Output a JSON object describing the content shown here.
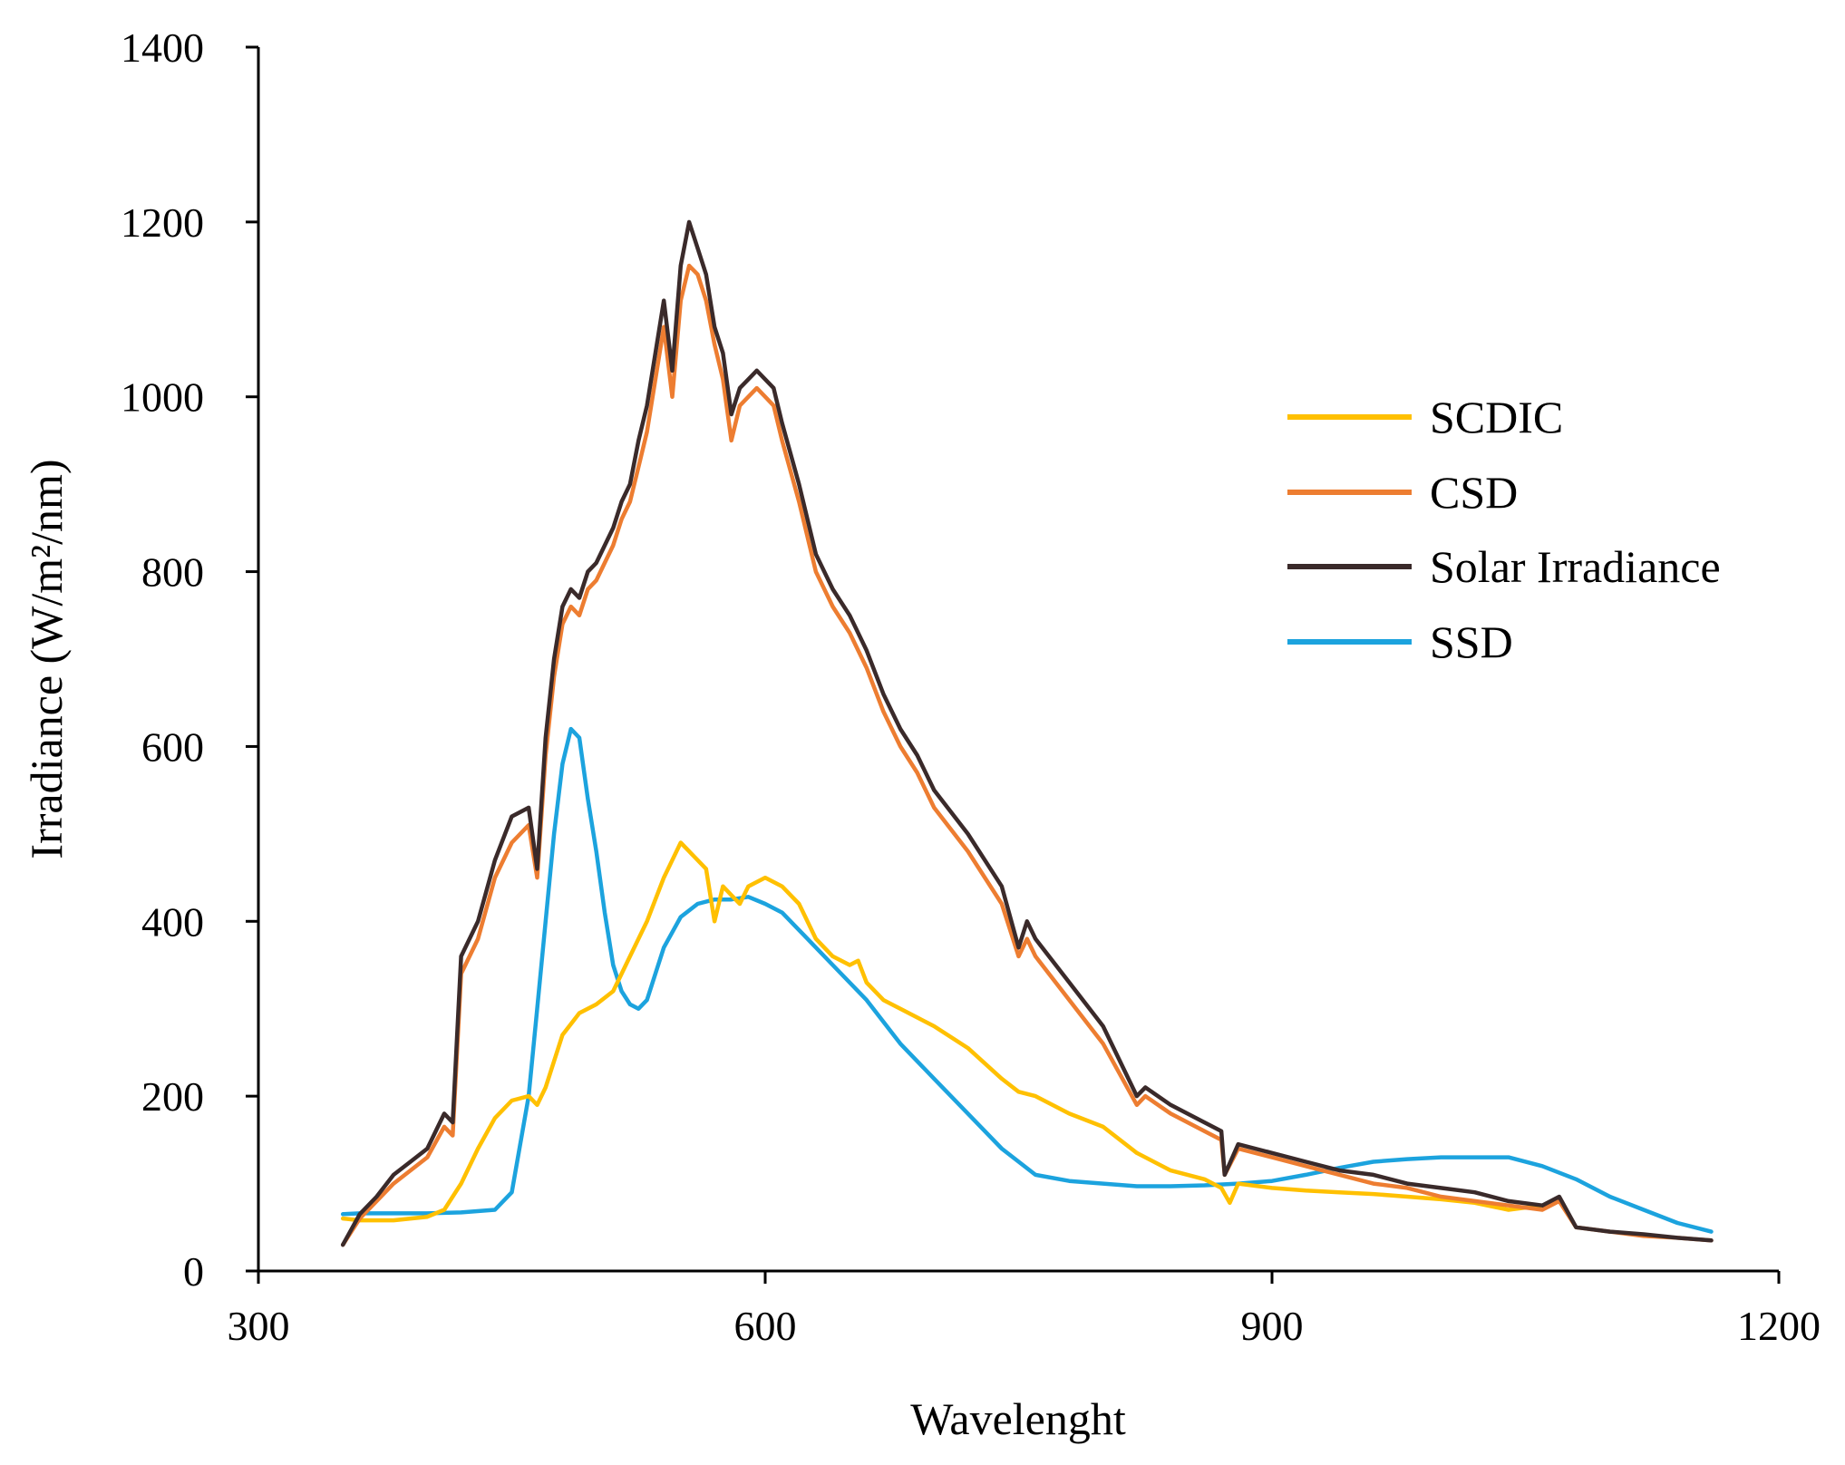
{
  "chart_data": {
    "type": "line",
    "title": "",
    "xlabel": "Wavelenght",
    "ylabel": "Irradiance (W/m²/nm)",
    "xlim": [
      300,
      1200
    ],
    "ylim": [
      0,
      1400
    ],
    "xticks": [
      "300",
      "600",
      "900",
      "1200"
    ],
    "yticks": [
      "0",
      "200",
      "400",
      "600",
      "800",
      "1000",
      "1200",
      "1400"
    ],
    "legend_position": "right",
    "series": [
      {
        "name": "SCDIC",
        "color": "#FFC000",
        "x": [
          350,
          360,
          380,
          400,
          410,
          420,
          430,
          440,
          450,
          460,
          465,
          470,
          475,
          480,
          490,
          500,
          510,
          520,
          530,
          540,
          545,
          550,
          555,
          560,
          565,
          570,
          575,
          580,
          585,
          590,
          600,
          610,
          620,
          630,
          640,
          650,
          655,
          660,
          670,
          680,
          690,
          700,
          720,
          740,
          750,
          760,
          780,
          800,
          820,
          840,
          860,
          870,
          875,
          880,
          900,
          920,
          940,
          960,
          980,
          1000,
          1020,
          1040,
          1060
        ],
        "y": [
          60,
          58,
          58,
          62,
          70,
          100,
          140,
          175,
          195,
          200,
          190,
          210,
          240,
          270,
          295,
          305,
          320,
          360,
          400,
          450,
          470,
          490,
          480,
          470,
          460,
          400,
          440,
          430,
          420,
          440,
          450,
          440,
          420,
          380,
          360,
          350,
          355,
          330,
          310,
          300,
          290,
          280,
          255,
          220,
          205,
          200,
          180,
          165,
          135,
          115,
          105,
          95,
          78,
          100,
          95,
          92,
          90,
          88,
          85,
          82,
          78,
          70,
          75
        ]
      },
      {
        "name": "CSD",
        "color": "#ED7D31",
        "x": [
          350,
          360,
          370,
          380,
          390,
          400,
          410,
          415,
          420,
          430,
          440,
          450,
          460,
          465,
          470,
          475,
          480,
          485,
          490,
          495,
          500,
          505,
          510,
          515,
          520,
          525,
          530,
          535,
          540,
          545,
          550,
          555,
          560,
          565,
          570,
          575,
          580,
          585,
          590,
          595,
          600,
          605,
          610,
          620,
          630,
          640,
          650,
          660,
          670,
          680,
          690,
          700,
          720,
          740,
          750,
          755,
          760,
          780,
          800,
          820,
          825,
          840,
          860,
          870,
          872,
          880,
          900,
          920,
          940,
          960,
          980,
          1000,
          1020,
          1040,
          1060,
          1070,
          1080,
          1100,
          1120,
          1140,
          1160
        ],
        "y": [
          30,
          60,
          80,
          100,
          115,
          130,
          165,
          155,
          340,
          380,
          450,
          490,
          510,
          450,
          590,
          680,
          740,
          760,
          750,
          780,
          790,
          810,
          830,
          860,
          880,
          920,
          960,
          1020,
          1080,
          1000,
          1110,
          1150,
          1140,
          1110,
          1060,
          1020,
          950,
          990,
          1000,
          1010,
          1000,
          990,
          950,
          880,
          800,
          760,
          730,
          690,
          640,
          600,
          570,
          530,
          480,
          420,
          360,
          380,
          360,
          310,
          260,
          190,
          200,
          180,
          160,
          150,
          110,
          140,
          130,
          120,
          110,
          100,
          95,
          85,
          80,
          75,
          70,
          80,
          50,
          45,
          40,
          38,
          35
        ]
      },
      {
        "name": "Solar Irradiance",
        "color": "#3A2A2A",
        "x": [
          350,
          360,
          370,
          380,
          390,
          400,
          410,
          415,
          420,
          430,
          440,
          450,
          460,
          465,
          470,
          475,
          480,
          485,
          490,
          495,
          500,
          505,
          510,
          515,
          520,
          525,
          530,
          535,
          540,
          545,
          550,
          555,
          560,
          565,
          570,
          575,
          580,
          585,
          590,
          595,
          600,
          605,
          610,
          620,
          630,
          640,
          650,
          660,
          670,
          680,
          690,
          700,
          720,
          740,
          750,
          755,
          760,
          780,
          800,
          820,
          825,
          840,
          860,
          870,
          872,
          880,
          900,
          920,
          940,
          960,
          980,
          1000,
          1020,
          1040,
          1060,
          1070,
          1080,
          1100,
          1120,
          1140,
          1160
        ],
        "y": [
          30,
          65,
          85,
          110,
          125,
          140,
          180,
          170,
          360,
          400,
          470,
          520,
          530,
          460,
          610,
          700,
          760,
          780,
          770,
          800,
          810,
          830,
          850,
          880,
          900,
          950,
          990,
          1050,
          1110,
          1030,
          1150,
          1200,
          1170,
          1140,
          1080,
          1050,
          980,
          1010,
          1020,
          1030,
          1020,
          1010,
          970,
          900,
          820,
          780,
          750,
          710,
          660,
          620,
          590,
          550,
          500,
          440,
          370,
          400,
          380,
          330,
          280,
          200,
          210,
          190,
          170,
          160,
          110,
          145,
          135,
          125,
          115,
          110,
          100,
          95,
          90,
          80,
          75,
          85,
          50,
          45,
          42,
          38,
          35
        ]
      },
      {
        "name": "SSD",
        "color": "#1CA3DE",
        "x": [
          350,
          360,
          380,
          400,
          420,
          440,
          450,
          460,
          465,
          470,
          475,
          480,
          485,
          490,
          495,
          500,
          505,
          510,
          515,
          520,
          525,
          530,
          535,
          540,
          550,
          560,
          570,
          580,
          590,
          600,
          610,
          620,
          640,
          660,
          680,
          700,
          720,
          740,
          760,
          780,
          800,
          820,
          840,
          860,
          880,
          900,
          920,
          940,
          960,
          980,
          1000,
          1020,
          1040,
          1060,
          1080,
          1100,
          1120,
          1140,
          1160
        ],
        "y": [
          65,
          66,
          66,
          66,
          67,
          70,
          90,
          200,
          300,
          400,
          500,
          580,
          620,
          610,
          540,
          480,
          410,
          350,
          320,
          305,
          300,
          310,
          340,
          370,
          405,
          420,
          425,
          425,
          428,
          420,
          410,
          390,
          350,
          310,
          260,
          220,
          180,
          140,
          110,
          103,
          100,
          97,
          97,
          98,
          100,
          103,
          110,
          118,
          125,
          128,
          130,
          130,
          130,
          120,
          105,
          85,
          70,
          55,
          45
        ]
      }
    ]
  }
}
